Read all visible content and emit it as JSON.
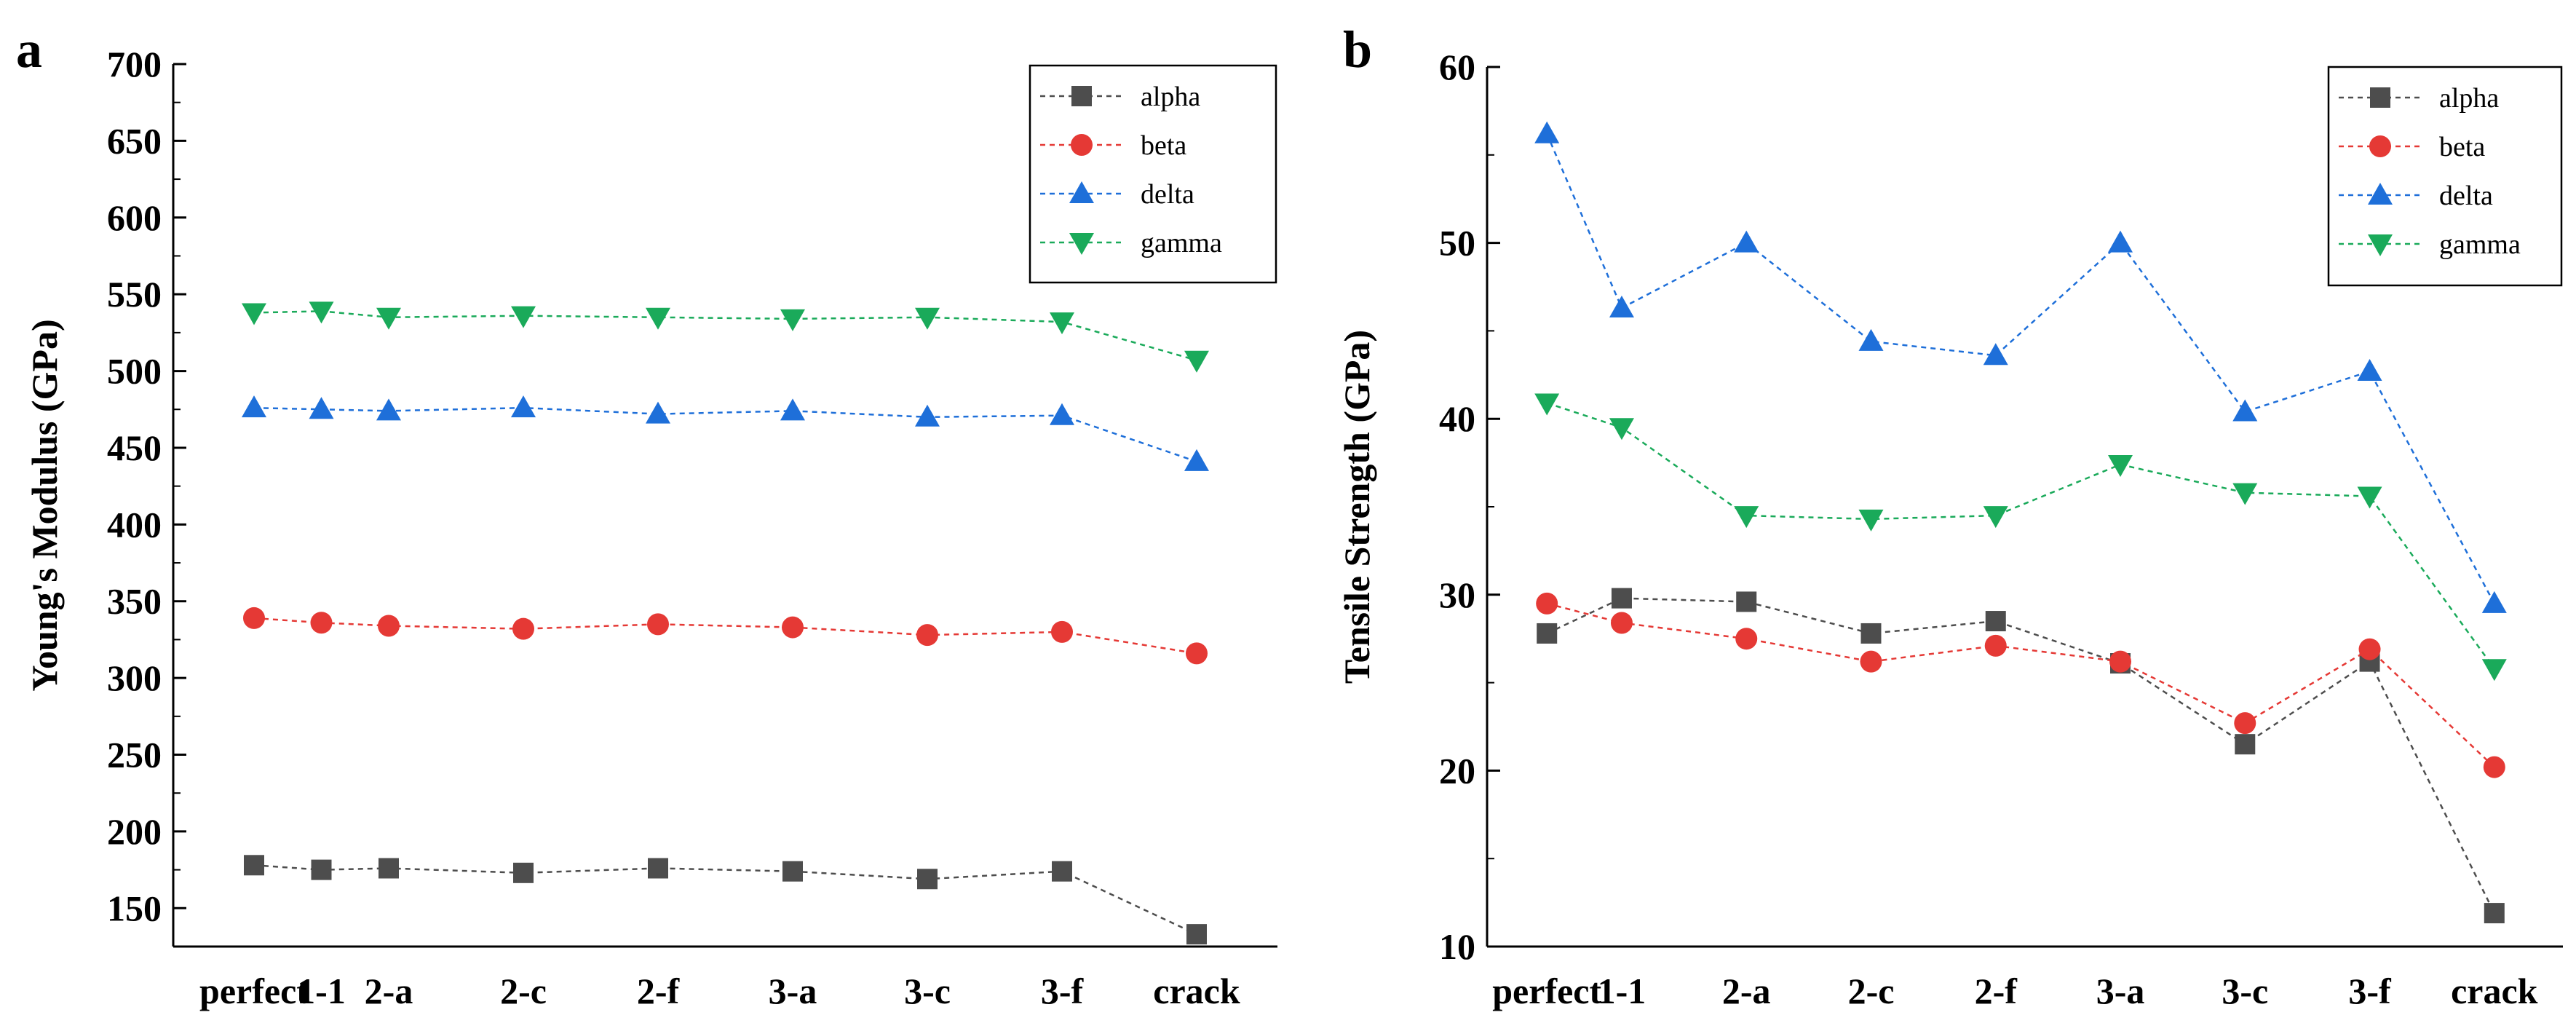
{
  "chart_data": [
    {
      "type": "line",
      "panel": "a",
      "ylabel": "Young's Modulus (GPa)",
      "xlabel": "",
      "categories": [
        "perfect",
        "1-1",
        "2-a",
        "2-c",
        "2-f",
        "3-a",
        "3-c",
        "3-f",
        "crack"
      ],
      "ylim": [
        125,
        700
      ],
      "yticks": [
        150,
        200,
        250,
        300,
        350,
        400,
        450,
        500,
        550,
        600,
        650,
        700
      ],
      "legend_position": "top-right",
      "series": [
        {
          "name": "alpha",
          "color": "#4d4d4d",
          "marker": "square",
          "values": [
            178,
            175,
            176,
            173,
            176,
            174,
            169,
            174,
            133
          ]
        },
        {
          "name": "beta",
          "color": "#e53935",
          "marker": "circle",
          "values": [
            339,
            336,
            334,
            332,
            335,
            333,
            328,
            330,
            316
          ]
        },
        {
          "name": "delta",
          "color": "#1e6fd9",
          "marker": "triangle-up",
          "values": [
            476,
            475,
            474,
            476,
            472,
            474,
            470,
            471,
            441
          ]
        },
        {
          "name": "gamma",
          "color": "#1aaa5a",
          "marker": "triangle-down",
          "values": [
            538,
            539,
            535,
            536,
            535,
            534,
            535,
            532,
            507
          ]
        }
      ]
    },
    {
      "type": "line",
      "panel": "b",
      "ylabel": "Tensile Strength (GPa)",
      "xlabel": "",
      "categories": [
        "perfect",
        "1-1",
        "2-a",
        "2-c",
        "2-f",
        "3-a",
        "3-c",
        "3-f",
        "crack"
      ],
      "ylim": [
        10,
        60
      ],
      "yticks": [
        10,
        20,
        30,
        40,
        50,
        60
      ],
      "legend_position": "top-right",
      "series": [
        {
          "name": "alpha",
          "color": "#4d4d4d",
          "marker": "square",
          "values": [
            27.8,
            29.8,
            29.6,
            27.8,
            28.5,
            26.1,
            21.5,
            26.2,
            11.9
          ]
        },
        {
          "name": "beta",
          "color": "#e53935",
          "marker": "circle",
          "values": [
            29.5,
            28.4,
            27.5,
            26.2,
            27.1,
            26.2,
            22.7,
            26.9,
            20.2
          ]
        },
        {
          "name": "delta",
          "color": "#1e6fd9",
          "marker": "triangle-up",
          "values": [
            56.2,
            46.3,
            50.0,
            44.4,
            43.6,
            50.0,
            40.4,
            42.7,
            29.5
          ]
        },
        {
          "name": "gamma",
          "color": "#1aaa5a",
          "marker": "triangle-down",
          "values": [
            40.9,
            39.5,
            34.5,
            34.3,
            34.5,
            37.4,
            35.8,
            35.6,
            25.8
          ]
        }
      ]
    }
  ]
}
